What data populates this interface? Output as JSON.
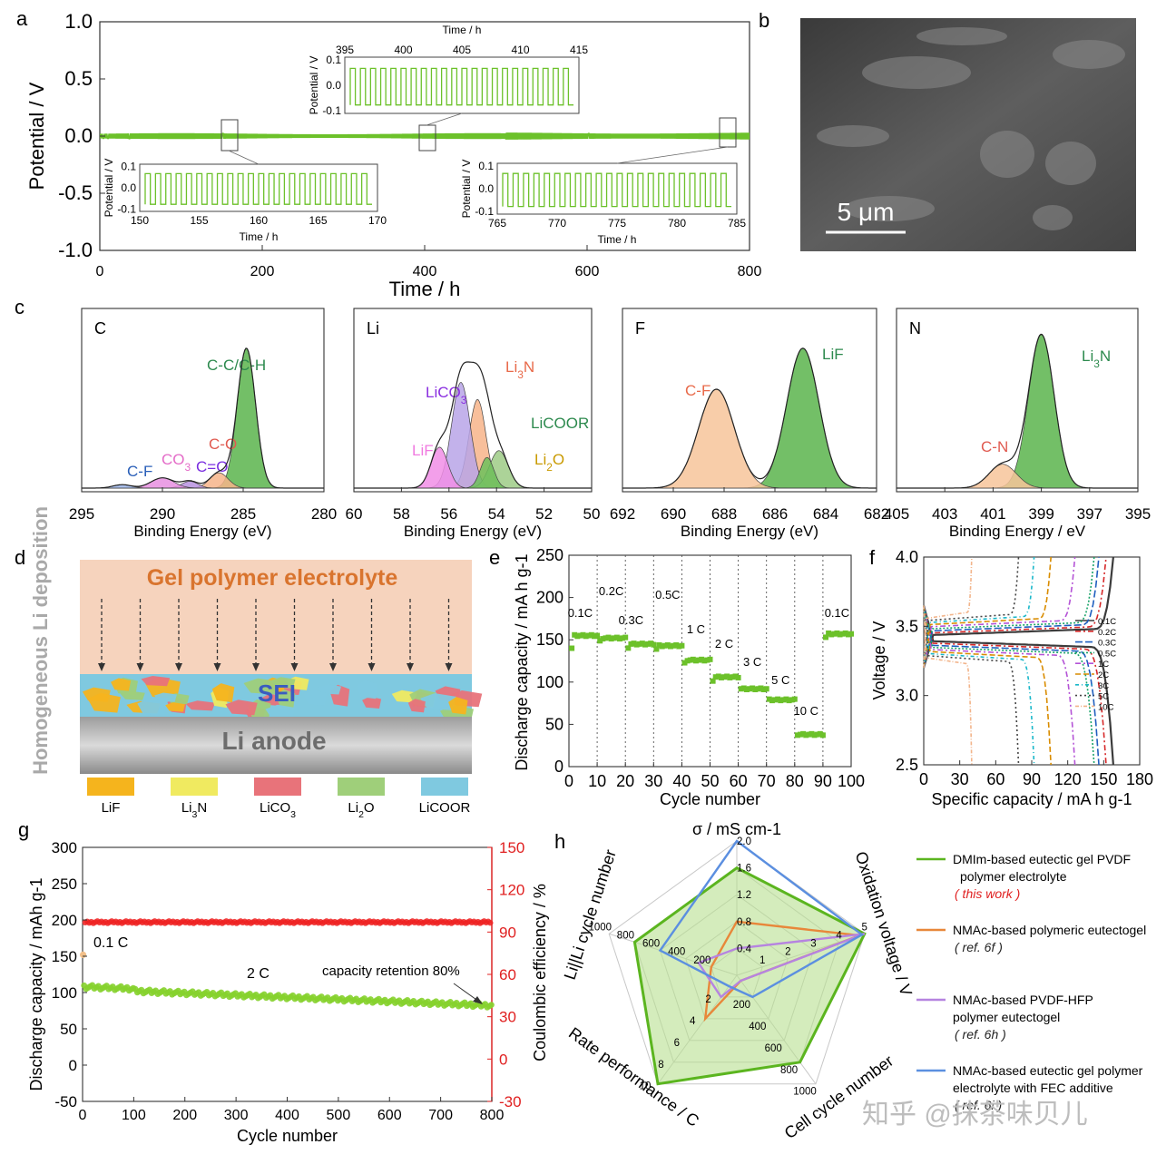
{
  "chart_data": [
    {
      "panel": "a",
      "type": "line",
      "xlabel": "Time / h",
      "ylabel": "Potential / V",
      "xlim": [
        0,
        800
      ],
      "ylim": [
        -1.0,
        1.0
      ],
      "xticks": [
        "0",
        "200",
        "400",
        "600",
        "800"
      ],
      "yticks": [
        "1.0",
        "0.5",
        "0.0",
        "-0.5",
        "-1.0"
      ],
      "series": [
        {
          "description": "symmetric Li|Li cycling, amplitude ~0.02 V"
        }
      ],
      "insets": [
        {
          "xlabel": "Time / h",
          "ylabel": "Potential / V",
          "xticks": [
            "150",
            "155",
            "160",
            "165",
            "170"
          ],
          "yticks": [
            "0.1",
            "0.0",
            "-0.1"
          ],
          "xlim": [
            150,
            170
          ]
        },
        {
          "xlabel": "Time / h",
          "ylabel": "Potential / V",
          "xticks": [
            "395",
            "400",
            "405",
            "410",
            "415"
          ],
          "yticks": [
            "0.1",
            "0.0",
            "-0.1"
          ],
          "xlim": [
            395,
            415
          ]
        },
        {
          "xlabel": "Time / h",
          "ylabel": "Potential / V",
          "xticks": [
            "765",
            "770",
            "775",
            "780",
            "785"
          ],
          "yticks": [
            "0.1",
            "0.0",
            "-0.1"
          ],
          "xlim": [
            765,
            785
          ]
        }
      ]
    },
    {
      "panel": "b",
      "type": "image",
      "scale_bar": "5 μm"
    },
    {
      "panel": "c",
      "type": "line",
      "subpanels": [
        {
          "element": "C",
          "xlabel": "Binding Energy (eV)",
          "xticks": [
            "295",
            "290",
            "285",
            "280"
          ],
          "xlim": [
            295,
            280
          ],
          "peaks": [
            {
              "label": "C-C/C-H",
              "center": 284.8
            },
            {
              "label": "C-O",
              "center": 286.5
            },
            {
              "label": "C=O",
              "center": 288.3
            },
            {
              "label": "CO3",
              "center": 290.0
            },
            {
              "label": "C-F",
              "center": 292.5
            }
          ]
        },
        {
          "element": "Li",
          "xlabel": "Binding Energy (eV)",
          "xticks": [
            "60",
            "58",
            "56",
            "54",
            "52",
            "50"
          ],
          "xlim": [
            60,
            50
          ],
          "peaks": [
            {
              "label": "Li3N",
              "center": 54.8
            },
            {
              "label": "LiCO3",
              "center": 55.5
            },
            {
              "label": "LiCOOR",
              "center": 53.9
            },
            {
              "label": "LiF",
              "center": 56.4
            },
            {
              "label": "Li2O",
              "center": 54.4
            }
          ]
        },
        {
          "element": "F",
          "xlabel": "Binding Energy (eV)",
          "xticks": [
            "692",
            "690",
            "688",
            "686",
            "684",
            "682"
          ],
          "xlim": [
            692,
            682
          ],
          "peaks": [
            {
              "label": "LiF",
              "center": 684.9
            },
            {
              "label": "C-F",
              "center": 688.3
            }
          ]
        },
        {
          "element": "N",
          "xlabel": "Binding Energy / eV",
          "xticks": [
            "405",
            "403",
            "401",
            "399",
            "397",
            "395"
          ],
          "xlim": [
            405,
            395
          ],
          "peaks": [
            {
              "label": "Li3N",
              "center": 399.0
            },
            {
              "label": "C-N",
              "center": 400.6
            }
          ]
        }
      ]
    },
    {
      "panel": "d",
      "type": "diagram",
      "side_label": "Homogeneous Li deposition",
      "layers": [
        "Gel polymer electrolyte",
        "SEI",
        "Li anode"
      ],
      "legend": [
        "LiF",
        "Li3N",
        "LiCO3",
        "Li2O",
        "LiCOOR"
      ],
      "legend_colors": [
        "#f5b41d",
        "#f0ea60",
        "#e8737a",
        "#9fcf7a",
        "#7fc9e0"
      ]
    },
    {
      "panel": "e",
      "type": "scatter",
      "xlabel": "Cycle number",
      "ylabel": "Discharge capacity / mA h g-1",
      "xlim": [
        0,
        100
      ],
      "ylim": [
        0,
        250
      ],
      "xticks": [
        "0",
        "10",
        "20",
        "30",
        "40",
        "50",
        "60",
        "70",
        "80",
        "90",
        "100"
      ],
      "yticks": [
        "0",
        "50",
        "100",
        "150",
        "200",
        "250"
      ],
      "segments": [
        {
          "label": "0.1C",
          "from": 0,
          "to": 10,
          "value": 155
        },
        {
          "label": "0.2C",
          "from": 10,
          "to": 20,
          "value": 152
        },
        {
          "label": "0.3C",
          "from": 20,
          "to": 30,
          "value": 145
        },
        {
          "label": "0.5C",
          "from": 30,
          "to": 40,
          "value": 143
        },
        {
          "label": "1 C",
          "from": 40,
          "to": 50,
          "value": 126
        },
        {
          "label": "2 C",
          "from": 50,
          "to": 60,
          "value": 106
        },
        {
          "label": "3 C",
          "from": 60,
          "to": 70,
          "value": 92
        },
        {
          "label": "5 C",
          "from": 70,
          "to": 80,
          "value": 79
        },
        {
          "label": "10 C",
          "from": 80,
          "to": 90,
          "value": 38
        },
        {
          "label": "0.1C",
          "from": 90,
          "to": 100,
          "value": 157
        }
      ]
    },
    {
      "panel": "f",
      "type": "line",
      "xlabel": "Specific capacity / mA h g-1",
      "ylabel": "Voltage / V",
      "xlim": [
        0,
        180
      ],
      "ylim": [
        2.5,
        4.0
      ],
      "xticks": [
        "0",
        "30",
        "60",
        "90",
        "120",
        "150",
        "180"
      ],
      "yticks": [
        "2.5",
        "3.0",
        "3.5",
        "4.0"
      ],
      "series": [
        {
          "name": "0.1C",
          "capacity": 158,
          "color": "#3c3c3c"
        },
        {
          "name": "0.2C",
          "capacity": 152,
          "color": "#d62728"
        },
        {
          "name": "0.3C",
          "capacity": 146,
          "color": "#1f5fbf"
        },
        {
          "name": "0.5C",
          "capacity": 142,
          "color": "#1aa36a"
        },
        {
          "name": "1C",
          "capacity": 126,
          "color": "#b453d6"
        },
        {
          "name": "2C",
          "capacity": 106,
          "color": "#d98c00"
        },
        {
          "name": "3C",
          "capacity": 92,
          "color": "#18b7c9"
        },
        {
          "name": "5C",
          "capacity": 79,
          "color": "#444444"
        },
        {
          "name": "10C",
          "capacity": 40,
          "color": "#f2b48a"
        }
      ]
    },
    {
      "panel": "g",
      "type": "scatter",
      "xlabel": "Cycle number",
      "ylabel": "Discharge capacity / mAh g-1",
      "y2label": "Coulombic efficiency / %",
      "xlim": [
        0,
        800
      ],
      "ylim": [
        -50,
        300
      ],
      "y2lim": [
        -30,
        150
      ],
      "xticks": [
        "0",
        "100",
        "200",
        "300",
        "400",
        "500",
        "600",
        "700",
        "800"
      ],
      "yticks": [
        "300",
        "250",
        "200",
        "150",
        "100",
        "50",
        "0",
        "-50"
      ],
      "y2ticks": [
        "150",
        "120",
        "90",
        "60",
        "30",
        "0",
        "-30"
      ],
      "annotations": [
        "0.1 C",
        "2 C",
        "capacity retention 80%"
      ],
      "capacity_start": 105,
      "capacity_end": 82,
      "initial_capacity_0p1C": 152,
      "coulombic_efficiency": 97
    },
    {
      "panel": "h",
      "type": "radar",
      "axes": [
        "σ / mS cm-1",
        "Oxidation voltage / V",
        "Cell cycle number",
        "Rate performance / C",
        "Li||Li cycle number"
      ],
      "axis_ticks": [
        [
          "0.4",
          "0.8",
          "1.2",
          "1.6",
          "2.0"
        ],
        [
          "1",
          "2",
          "3",
          "4",
          "5"
        ],
        [
          "200",
          "400",
          "600",
          "800",
          "1000"
        ],
        [
          "2",
          "4",
          "6",
          "8",
          "10"
        ],
        [
          "200",
          "400",
          "600",
          "800",
          "1000"
        ]
      ],
      "series": [
        {
          "name": "DMIm-based eutectic  gel PVDF polymer electrolyte",
          "note": "( this work )",
          "color": "#5bb51f",
          "values": [
            1.6,
            5.0,
            800,
            10,
            800
          ]
        },
        {
          "name": "NMAc-based polymeric eutectogel",
          "note": "( ref. 6f )",
          "color": "#e8873a",
          "values": [
            0.8,
            4.8,
            50,
            4,
            200
          ]
        },
        {
          "name": "NMAc-based PVDF-HFP polymer eutectogel",
          "note": "( ref. 6h )",
          "color": "#b684e0",
          "values": [
            0.4,
            5.2,
            50,
            2,
            300
          ]
        },
        {
          "name": "NMAc-based eutectic gel polymer electrolyte with FEC additive",
          "note": "( ref. 6i )",
          "color": "#5b8fe0",
          "values": [
            2.0,
            4.9,
            200,
            1,
            600
          ]
        }
      ]
    }
  ],
  "panel_labels": [
    "a",
    "b",
    "c",
    "d",
    "e",
    "f",
    "g",
    "h"
  ],
  "watermark": "知乎 @抹茶味贝儿"
}
